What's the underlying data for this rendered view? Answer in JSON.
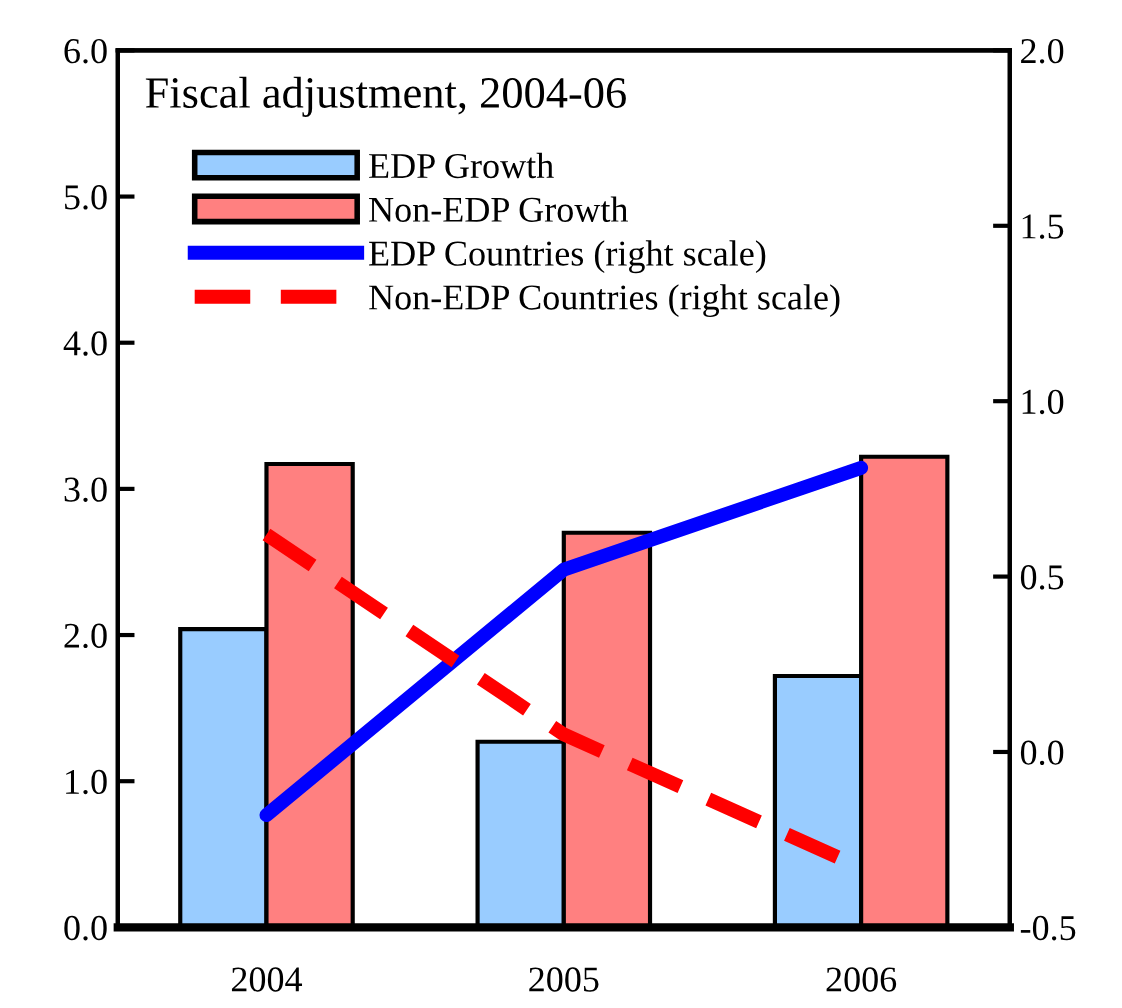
{
  "chart_data": {
    "type": "bar",
    "title": "Fiscal adjustment, 2004-06",
    "categories": [
      "2004",
      "2005",
      "2006"
    ],
    "series": [
      {
        "name": "EDP Growth",
        "color": "#99ccff",
        "values": [
          2.04,
          1.27,
          1.72
        ]
      },
      {
        "name": "Non-EDP Growth",
        "color": "#ff8080",
        "values": [
          3.17,
          2.7,
          3.22
        ]
      },
      {
        "name": "EDP Countries (right scale)",
        "type": "line",
        "axis": "y2",
        "color": "#0000ff",
        "line_style": "solid",
        "values": [
          -0.18,
          0.52,
          0.81
        ]
      },
      {
        "name": "Non-EDP Countries (right scale)",
        "type": "line",
        "axis": "y2",
        "color": "#ff0000",
        "line_style": "dashed",
        "values": [
          0.62,
          0.05,
          -0.33
        ]
      }
    ],
    "ylim": [
      0,
      6
    ],
    "yticks": [
      {
        "value": 0,
        "label": "0.0"
      },
      {
        "value": 1,
        "label": "1.0"
      },
      {
        "value": 2,
        "label": "2.0"
      },
      {
        "value": 3,
        "label": "3.0"
      },
      {
        "value": 4,
        "label": "4.0"
      },
      {
        "value": 5,
        "label": "5.0"
      },
      {
        "value": 6,
        "label": "6.0"
      }
    ],
    "y2lim": [
      -0.5,
      2
    ],
    "y2ticks": [
      -0.5,
      {
        "value": 0,
        "label": "0.0"
      },
      0.5,
      {
        "value": 1,
        "label": "1.0"
      },
      1.5,
      {
        "value": 2,
        "label": "2.0"
      }
    ],
    "legend": "top left",
    "grid": false
  }
}
